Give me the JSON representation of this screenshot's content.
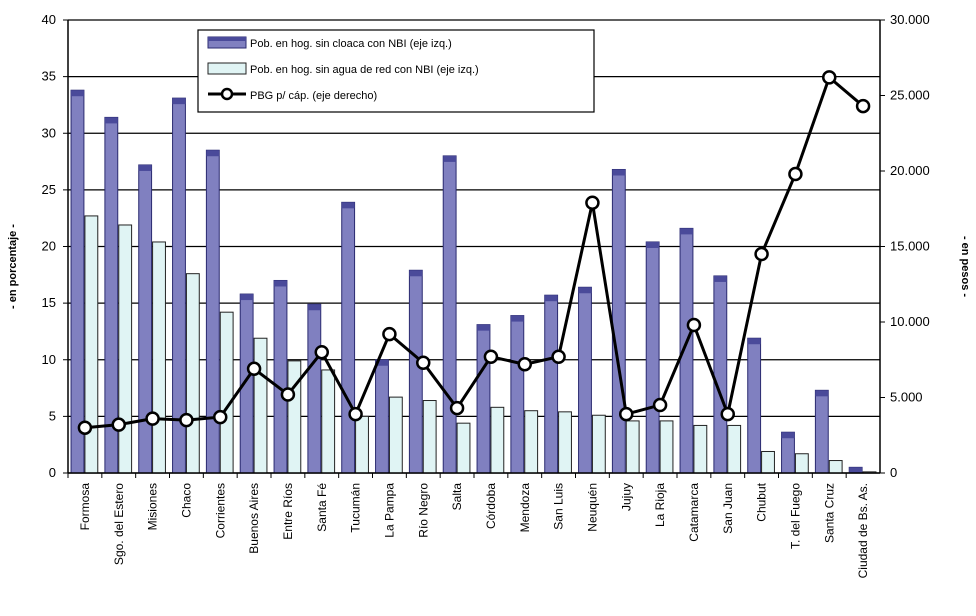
{
  "chart_data": {
    "type": "bar",
    "categories": [
      "Formosa",
      "Sgo. del Estero",
      "Misiones",
      "Chaco",
      "Corrientes",
      "Buenos Aires",
      "Entre Ríos",
      "Santa Fé",
      "Tucumán",
      "La Pampa",
      "Río Negro",
      "Salta",
      "Córdoba",
      "Mendoza",
      "San Luis",
      "Neuquén",
      "Jujuy",
      "La Rioja",
      "Catamarca",
      "San Juan",
      "Chubut",
      "T. del Fuego",
      "Santa Cruz",
      "Ciudad de Bs. As."
    ],
    "series": [
      {
        "name": "Pob. en hog. sin cloaca con NBI (eje izq.)",
        "type": "bar",
        "axis": "left",
        "color": "#8080c0",
        "values": [
          33.8,
          31.4,
          27.2,
          33.1,
          28.5,
          15.8,
          17.0,
          14.9,
          23.9,
          10.0,
          17.9,
          28.0,
          13.1,
          13.9,
          15.7,
          16.4,
          26.8,
          20.4,
          21.6,
          17.4,
          11.9,
          3.6,
          7.3,
          0.5
        ]
      },
      {
        "name": "Pob. en hog. sin agua de red con NBI (eje izq.)",
        "type": "bar",
        "axis": "left",
        "color": "#e0f4f4",
        "values": [
          22.7,
          21.9,
          20.4,
          17.6,
          14.2,
          11.9,
          9.9,
          9.1,
          5.0,
          6.7,
          6.4,
          4.4,
          5.8,
          5.5,
          5.4,
          5.1,
          4.6,
          4.6,
          4.2,
          4.2,
          1.9,
          1.7,
          1.1,
          0.1
        ]
      },
      {
        "name": "PBG p/ cáp. (eje derecho)",
        "type": "line",
        "axis": "right",
        "color": "#000000",
        "values": [
          3000,
          3200,
          3600,
          3500,
          3700,
          6900,
          5200,
          8000,
          3900,
          9200,
          7300,
          4300,
          7700,
          7200,
          7700,
          17900,
          3900,
          4500,
          9800,
          3900,
          14500,
          19800,
          26200,
          24300
        ]
      }
    ],
    "axes": {
      "left": {
        "label": "- en porcentaje -",
        "min": 0,
        "max": 40,
        "ticks": [
          "0",
          "5",
          "10",
          "15",
          "20",
          "25",
          "30",
          "35",
          "40"
        ]
      },
      "right": {
        "label": "- en pesos -",
        "min": 0,
        "max": 30000,
        "ticks": [
          "0",
          "5.000",
          "10.000",
          "15.000",
          "20.000",
          "25.000",
          "30.000"
        ]
      }
    },
    "grid": true,
    "legend_position": "top-left"
  }
}
